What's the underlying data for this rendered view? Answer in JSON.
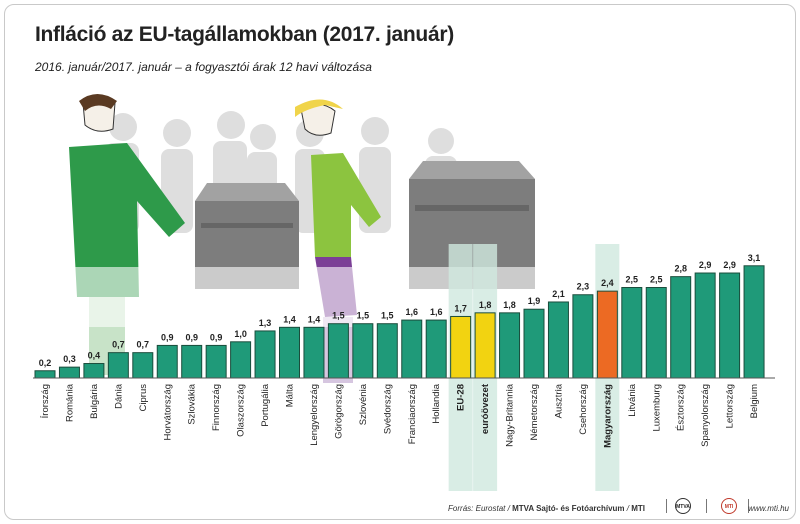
{
  "title": "Infláció az EU-tagállamokban (2017. január)",
  "subtitle": "2016. január/2017. január – a fogyasztói árak 12 havi változása",
  "footer": {
    "source": "Forrás: Eurostat",
    "agency": "MTVA Sajtó- és Fotóarchívum",
    "agency_suffix": "MTI",
    "logo_mtva": "MTVA",
    "logo_mti": "MTI",
    "website": "www.mti.hu"
  },
  "colors": {
    "default": "#1f9a79",
    "eu": "#f2d311",
    "hungary": "#ec6a23",
    "highlight_band": "#cfe9de"
  },
  "chart_data": {
    "type": "bar",
    "title": "Infláció az EU-tagállamokban (2017. január)",
    "subtitle": "2016. január/2017. január – a fogyasztói árak 12 havi változása",
    "xlabel": "",
    "ylabel": "",
    "ylim": [
      0,
      3.1
    ],
    "categories": [
      "Írország",
      "Románia",
      "Bulgária",
      "Dánia",
      "Ciprus",
      "Horvátország",
      "Szlovákia",
      "Finnország",
      "Olaszország",
      "Portugália",
      "Málta",
      "Lengyelország",
      "Görögország",
      "Szlovénia",
      "Svédország",
      "Franciaország",
      "Hollandia",
      "EU-28",
      "euróövezet",
      "Nagy-Britannia",
      "Németország",
      "Ausztria",
      "Csehország",
      "Magyarország",
      "Litvánia",
      "Luxemburg",
      "Észtország",
      "Spanyolország",
      "Lettország",
      "Belgium"
    ],
    "values": [
      0.2,
      0.3,
      0.4,
      0.7,
      0.7,
      0.9,
      0.9,
      0.9,
      1.0,
      1.3,
      1.4,
      1.4,
      1.5,
      1.5,
      1.5,
      1.6,
      1.6,
      1.7,
      1.8,
      1.8,
      1.9,
      2.1,
      2.3,
      2.4,
      2.5,
      2.5,
      2.8,
      2.9,
      2.9,
      3.1
    ],
    "value_labels": [
      "0,2",
      "0,3",
      "0,4",
      "0,7",
      "0,7",
      "0,9",
      "0,9",
      "0,9",
      "1,0",
      "1,3",
      "1,4",
      "1,4",
      "1,5",
      "1,5",
      "1,5",
      "1,6",
      "1,6",
      "1,7",
      "1,8",
      "1,8",
      "1,9",
      "2,1",
      "2,3",
      "2,4",
      "2,5",
      "2,5",
      "2,8",
      "2,9",
      "2,9",
      "3,1"
    ],
    "highlight": {
      "eu": [
        "EU-28",
        "euróövezet"
      ],
      "hungary": [
        "Magyarország"
      ]
    }
  }
}
